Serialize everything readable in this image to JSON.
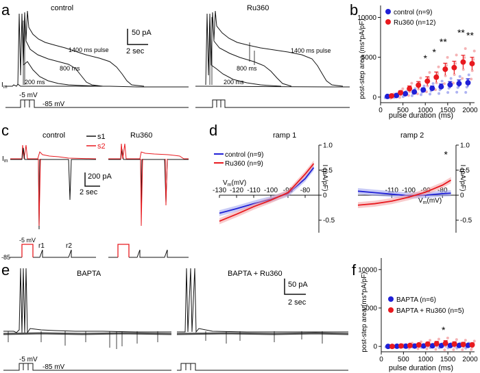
{
  "figure": {
    "panel_letters": [
      "a",
      "b",
      "c",
      "d",
      "e",
      "f"
    ],
    "colors": {
      "control": "#1f1fd6",
      "ru360": "#e8191e",
      "black": "#111111",
      "light_red": "#f2a0a2",
      "light_blue": "#9aa0ef"
    }
  },
  "panel_a": {
    "title_left": "control",
    "title_right": "Ru360",
    "im_label": "I",
    "im_sub": "m",
    "trace_labels": {
      "p1400": "1400 ms pulse",
      "p800": "800 ms",
      "p200": "200 ms"
    },
    "scale_current": "50 pA",
    "scale_time": "2 sec",
    "step_label": "-5 mV",
    "hold_label": "-85 mV"
  },
  "panel_c": {
    "title_left": "control",
    "title_right": "Ru360",
    "legend_s1": "s1",
    "legend_s2": "s2",
    "im_label": "I",
    "im_sub": "m",
    "scale_current": "200 pA",
    "scale_time": "2 sec",
    "step_label": "-5 mV",
    "hold_label": "-85",
    "ramp1": "r1",
    "ramp2": "r2"
  },
  "panel_e": {
    "title_left": "BAPTA",
    "title_right": "BAPTA + Ru360",
    "scale_current": "50 pA",
    "scale_time": "2 sec",
    "step_label": "-5 mV",
    "hold_label": "-85 mV"
  },
  "chart_data": [
    {
      "id": "b",
      "type": "scatter",
      "ylabel": "post-step area (ms*pA/pF)",
      "xlabel": "pulse duration (ms)",
      "xlim": [
        0,
        2100
      ],
      "ylim": [
        -700,
        11500
      ],
      "xticks": [
        0,
        500,
        1000,
        1500,
        2000
      ],
      "yticks": [
        0,
        5000,
        10000
      ],
      "x": [
        200,
        400,
        600,
        800,
        1000,
        1200,
        1400,
        1600,
        1800,
        2000
      ],
      "series": [
        {
          "name": "control (n=9)",
          "color": "#1f1fd6",
          "values": [
            80,
            200,
            420,
            650,
            900,
            1100,
            1300,
            1550,
            1700,
            1800
          ],
          "err": [
            70,
            100,
            150,
            200,
            250,
            300,
            350,
            400,
            450,
            500
          ]
        },
        {
          "name": "Ru360 (n=12)",
          "color": "#e8191e",
          "values": [
            150,
            550,
            1050,
            1500,
            2000,
            2500,
            3500,
            3700,
            4400,
            4200
          ],
          "err": [
            120,
            250,
            350,
            450,
            550,
            650,
            750,
            800,
            850,
            800
          ]
        }
      ],
      "significance": [
        {
          "x": 1000,
          "label": "*"
        },
        {
          "x": 1200,
          "label": "*"
        },
        {
          "x": 1400,
          "label": "**"
        },
        {
          "x": 1800,
          "label": "**"
        },
        {
          "x": 2000,
          "label": "**"
        }
      ]
    },
    {
      "id": "d_ramp1",
      "type": "line",
      "title": "ramp 1",
      "xlabel": "V",
      "xlabel_sub": "m",
      "xlabel_unit": "(mV)",
      "ylabel": "I (pA/pF)",
      "xlim": [
        -130,
        -72
      ],
      "ylim": [
        -0.75,
        1.0
      ],
      "xticks": [
        -130,
        -120,
        -110,
        -100,
        -90,
        -80
      ],
      "xtick_labels": [
        "-130",
        "-120",
        "-110",
        "-100",
        "-90",
        "-80"
      ],
      "yticks": [
        -0.5,
        0,
        0.5,
        1.0
      ],
      "ytick_labels": [
        "-0.5",
        "0",
        "0.5",
        "1.0"
      ],
      "x": [
        -130,
        -120,
        -110,
        -100,
        -90,
        -80,
        -75
      ],
      "series": [
        {
          "name": "control (n=9)",
          "color": "#1f1fd6",
          "values": [
            -0.36,
            -0.27,
            -0.17,
            -0.08,
            0.03,
            0.33,
            0.55
          ]
        },
        {
          "name": "Ru360 (n=9)",
          "color": "#e8191e",
          "values": [
            -0.52,
            -0.38,
            -0.23,
            -0.1,
            0.05,
            0.42,
            0.63
          ]
        }
      ]
    },
    {
      "id": "d_ramp2",
      "type": "line",
      "title": "ramp 2",
      "xlabel": "V",
      "xlabel_sub": "m",
      "xlabel_unit": "(mV)",
      "ylabel": "I (pA/pF)",
      "xlim": [
        -130,
        -72
      ],
      "ylim": [
        -0.75,
        1.0
      ],
      "xticks": [
        -110,
        -100,
        -90,
        -80
      ],
      "xtick_labels": [
        "-110",
        "-100",
        "-90",
        "-80"
      ],
      "yticks": [
        -0.5,
        0,
        0.5,
        1.0
      ],
      "ytick_labels": [
        "-0.5",
        "0",
        "0.5",
        "1.0"
      ],
      "x": [
        -130,
        -120,
        -110,
        -100,
        -90,
        -80,
        -75
      ],
      "series": [
        {
          "name": "control",
          "color": "#1f1fd6",
          "values": [
            0.08,
            0.05,
            0.02,
            -0.01,
            0.0,
            0.03,
            0.04
          ]
        },
        {
          "name": "Ru360",
          "color": "#e8191e",
          "values": [
            -0.2,
            -0.17,
            -0.12,
            -0.04,
            0.06,
            0.2,
            0.3
          ]
        }
      ],
      "significance": [
        {
          "x": -78,
          "label": "*"
        }
      ]
    },
    {
      "id": "f",
      "type": "scatter",
      "ylabel": "post-step area (ms*pA/pF)",
      "xlabel": "pulse duration (ms)",
      "xlim": [
        0,
        2100
      ],
      "ylim": [
        -700,
        11500
      ],
      "xticks": [
        0,
        500,
        1000,
        1500,
        2000
      ],
      "yticks": [
        0,
        5000,
        10000
      ],
      "x": [
        200,
        400,
        600,
        800,
        1000,
        1200,
        1400,
        1600,
        1800,
        2000
      ],
      "series": [
        {
          "name": "BAPTA (n=6)",
          "color": "#1f1fd6",
          "values": [
            0,
            20,
            30,
            50,
            60,
            80,
            100,
            110,
            120,
            130
          ],
          "err": [
            30,
            40,
            50,
            60,
            80,
            100,
            120,
            130,
            140,
            150
          ]
        },
        {
          "name": "BAPTA + Ru360 (n=5)",
          "color": "#e8191e",
          "values": [
            0,
            60,
            120,
            200,
            300,
            350,
            400,
            300,
            250,
            200
          ],
          "err": [
            40,
            80,
            150,
            200,
            250,
            300,
            350,
            300,
            280,
            250
          ]
        }
      ],
      "significance": [
        {
          "x": 1400,
          "label": "*"
        }
      ]
    }
  ]
}
